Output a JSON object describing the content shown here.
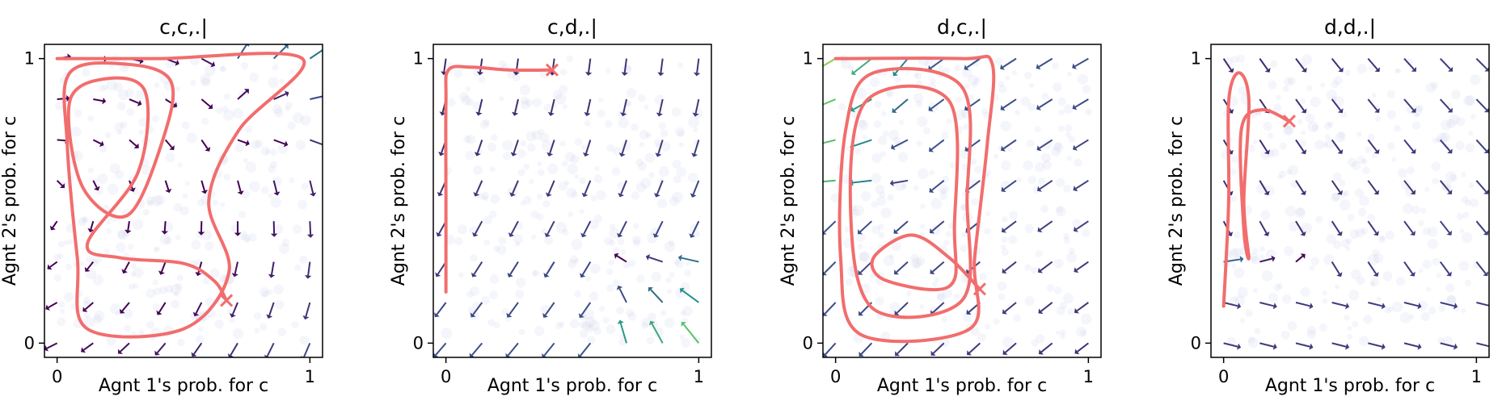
{
  "chart_data": [
    {
      "type": "quiver",
      "title": "c,c,.|",
      "xlabel": "Agnt 1's prob. for c",
      "ylabel": "Agnt 2's prob. for c",
      "xlim": [
        -0.05,
        1.05
      ],
      "ylim": [
        -0.05,
        1.05
      ],
      "xticks": [
        "0",
        "1"
      ],
      "yticks": [
        "0",
        "1"
      ],
      "trajectory": [
        [
          0.0,
          1.0
        ],
        [
          0.4,
          1.0
        ],
        [
          0.97,
          1.0
        ],
        [
          0.72,
          0.75
        ],
        [
          0.6,
          0.5
        ],
        [
          0.68,
          0.25
        ],
        [
          0.5,
          0.05
        ],
        [
          0.12,
          0.05
        ],
        [
          0.08,
          0.3
        ],
        [
          0.04,
          0.7
        ],
        [
          0.05,
          0.95
        ],
        [
          0.28,
          0.98
        ],
        [
          0.45,
          0.92
        ],
        [
          0.42,
          0.72
        ],
        [
          0.28,
          0.45
        ],
        [
          0.1,
          0.55
        ],
        [
          0.05,
          0.85
        ],
        [
          0.2,
          0.93
        ],
        [
          0.35,
          0.88
        ],
        [
          0.32,
          0.6
        ],
        [
          0.12,
          0.35
        ],
        [
          0.25,
          0.3
        ],
        [
          0.5,
          0.28
        ],
        [
          0.62,
          0.22
        ],
        [
          0.67,
          0.15
        ]
      ],
      "end_marker": [
        0.67,
        0.15
      ],
      "vector_field": "c,c"
    },
    {
      "type": "quiver",
      "title": "c,d,.|",
      "xlabel": "Agnt 1's prob. for c",
      "ylabel": "Agnt 2's prob. for c",
      "xlim": [
        -0.05,
        1.05
      ],
      "ylim": [
        -0.05,
        1.05
      ],
      "xticks": [
        "0",
        "1"
      ],
      "yticks": [
        "0",
        "1"
      ],
      "trajectory": [
        [
          0.0,
          0.18
        ],
        [
          0.0,
          0.5
        ],
        [
          0.0,
          0.85
        ],
        [
          0.01,
          0.96
        ],
        [
          0.1,
          0.97
        ],
        [
          0.25,
          0.96
        ],
        [
          0.42,
          0.96
        ]
      ],
      "end_marker": [
        0.42,
        0.96
      ],
      "vector_field": "c,d"
    },
    {
      "type": "quiver",
      "title": "d,c,.|",
      "xlabel": "Agnt 1's prob. for c",
      "ylabel": "Agnt 2's prob. for c",
      "xlim": [
        -0.05,
        1.05
      ],
      "ylim": [
        -0.05,
        1.05
      ],
      "xticks": [
        "0",
        "1"
      ],
      "yticks": [
        "0",
        "1"
      ],
      "trajectory": [
        [
          0.0,
          1.0
        ],
        [
          0.5,
          1.0
        ],
        [
          0.62,
          0.98
        ],
        [
          0.6,
          0.7
        ],
        [
          0.55,
          0.3
        ],
        [
          0.53,
          0.05
        ],
        [
          0.1,
          0.03
        ],
        [
          0.02,
          0.3
        ],
        [
          0.04,
          0.75
        ],
        [
          0.15,
          0.95
        ],
        [
          0.5,
          0.9
        ],
        [
          0.52,
          0.5
        ],
        [
          0.5,
          0.15
        ],
        [
          0.15,
          0.12
        ],
        [
          0.06,
          0.45
        ],
        [
          0.12,
          0.85
        ],
        [
          0.45,
          0.85
        ],
        [
          0.47,
          0.4
        ],
        [
          0.45,
          0.2
        ],
        [
          0.2,
          0.22
        ],
        [
          0.15,
          0.3
        ],
        [
          0.3,
          0.38
        ],
        [
          0.45,
          0.3
        ],
        [
          0.57,
          0.19
        ]
      ],
      "end_marker": [
        0.57,
        0.19
      ],
      "vector_field": "d,c"
    },
    {
      "type": "quiver",
      "title": "d,d,.|",
      "xlabel": "Agnt 1's prob. for c",
      "ylabel": "Agnt 2's prob. for c",
      "xlim": [
        -0.05,
        1.05
      ],
      "ylim": [
        -0.05,
        1.05
      ],
      "xticks": [
        "0",
        "1"
      ],
      "yticks": [
        "0",
        "1"
      ],
      "trajectory": [
        [
          0.0,
          0.13
        ],
        [
          0.02,
          0.5
        ],
        [
          0.02,
          0.85
        ],
        [
          0.06,
          0.95
        ],
        [
          0.1,
          0.85
        ],
        [
          0.08,
          0.5
        ],
        [
          0.1,
          0.3
        ],
        [
          0.08,
          0.4
        ],
        [
          0.07,
          0.75
        ],
        [
          0.15,
          0.82
        ],
        [
          0.26,
          0.78
        ]
      ],
      "end_marker": [
        0.26,
        0.78
      ],
      "vector_field": "d,d"
    }
  ],
  "colors": {
    "trajectory": "#f26d6d",
    "end_marker": "#f26d6d",
    "arrow_low": "#440154",
    "arrow_mid": "#21918c",
    "arrow_high": "#fde725",
    "axes": "#000000"
  }
}
